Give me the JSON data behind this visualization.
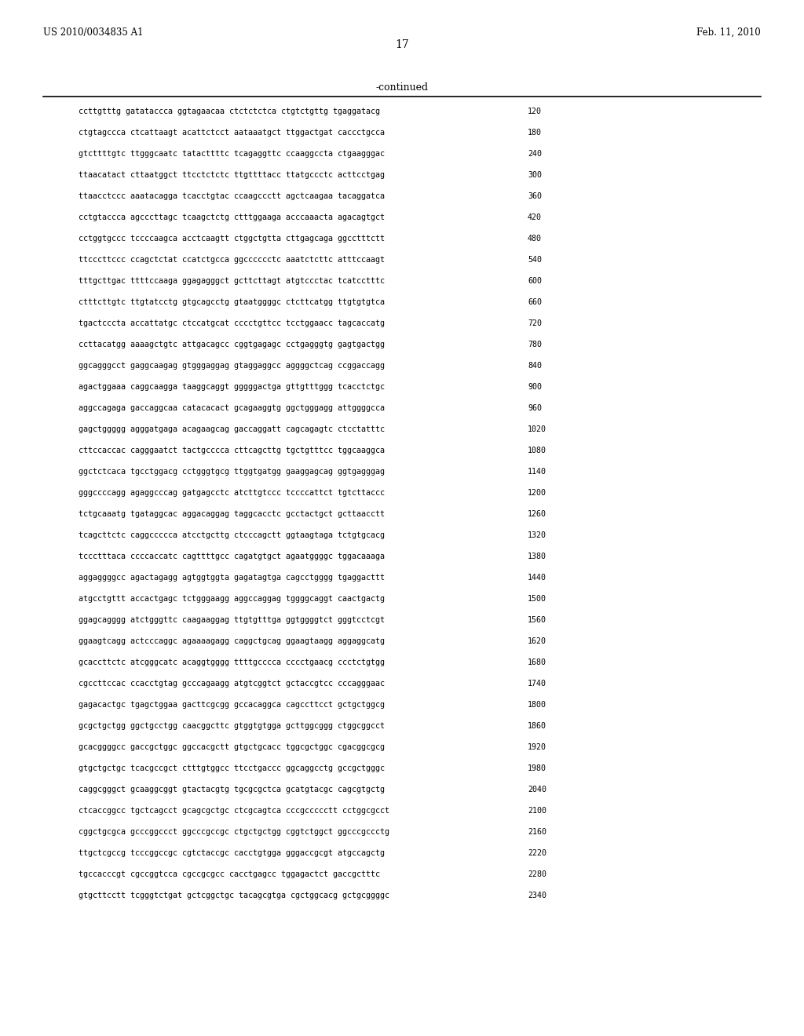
{
  "header_left": "US 2010/0034835 A1",
  "header_right": "Feb. 11, 2010",
  "page_number": "17",
  "continued_label": "-continued",
  "background_color": "#ffffff",
  "text_color": "#000000",
  "sequences": [
    {
      "seq": "ccttgtttg gatataccca ggtagaacaa ctctctctca ctgtctgttg tgaggatacg",
      "num": "120"
    },
    {
      "seq": "ctgtagccca ctcattaagt acattctcct aataaatgct ttggactgat caccctgcca",
      "num": "180"
    },
    {
      "seq": "gtcttttgtc ttgggcaatc tatacttttc tcagaggttc ccaaggccta ctgaagggac",
      "num": "240"
    },
    {
      "seq": "ttaacatact cttaatggct ttcctctctc ttgttttacc ttatgccctc acttcctgag",
      "num": "300"
    },
    {
      "seq": "ttaacctccc aaatacagga tcacctgtac ccaagccctt agctcaagaa tacaggatca",
      "num": "360"
    },
    {
      "seq": "cctgtaccca agcccttagc tcaagctctg ctttggaaga acccaaacta agacagtgct",
      "num": "420"
    },
    {
      "seq": "cctggtgccc tccccaagca acctcaagtt ctggctgtta cttgagcaga ggcctttctt",
      "num": "480"
    },
    {
      "seq": "ttcccttccc ccagctctat ccatctgcca ggcccccctc aaatctcttc atttccaagt",
      "num": "540"
    },
    {
      "seq": "tttgcttgac ttttccaaga ggagagggct gcttcttagt atgtccctac tcatcctttc",
      "num": "600"
    },
    {
      "seq": "ctttcttgtc ttgtatcctg gtgcagcctg gtaatggggc ctcttcatgg ttgtgtgtca",
      "num": "660"
    },
    {
      "seq": "tgactcccta accattatgc ctccatgcat cccctgttcc tcctggaacc tagcaccatg",
      "num": "720"
    },
    {
      "seq": "ccttacatgg aaaagctgtc attgacagcc cggtgagagc cctgagggtg gagtgactgg",
      "num": "780"
    },
    {
      "seq": "ggcagggcct gaggcaagag gtgggaggag gtaggaggcc aggggctcag ccggaccagg",
      "num": "840"
    },
    {
      "seq": "agactggaaa caggcaagga taaggcaggt gggggactga gttgtttggg tcacctctgc",
      "num": "900"
    },
    {
      "seq": "aggccagaga gaccaggcaa catacacact gcagaaggtg ggctgggagg attggggcca",
      "num": "960"
    },
    {
      "seq": "gagctggggg agggatgaga acagaagcag gaccaggatt cagcagagtc ctcctatttc",
      "num": "1020"
    },
    {
      "seq": "cttccaccac cagggaatct tactgcccca cttcagcttg tgctgtttcc tggcaaggca",
      "num": "1080"
    },
    {
      "seq": "ggctctcaca tgcctggacg cctgggtgcg ttggtgatgg gaaggagcag ggtgagggag",
      "num": "1140"
    },
    {
      "seq": "gggccccagg agaggcccag gatgagcctc atcttgtccc tccccattct tgtcttaccc",
      "num": "1200"
    },
    {
      "seq": "tctgcaaatg tgataggcac aggacaggag taggcacctc gcctactgct gcttaacctt",
      "num": "1260"
    },
    {
      "seq": "tcagcttctc caggccccca atcctgcttg ctcccagctt ggtaagtaga tctgtgcacg",
      "num": "1320"
    },
    {
      "seq": "tccctttaca ccccaccatc cagttttgcc cagatgtgct agaatggggc tggacaaaga",
      "num": "1380"
    },
    {
      "seq": "aggaggggcc agactagagg agtggtggta gagatagtga cagcctgggg tgaggacttt",
      "num": "1440"
    },
    {
      "seq": "atgcctgttt accactgagc tctgggaagg aggccaggag tggggcaggt caactgactg",
      "num": "1500"
    },
    {
      "seq": "ggagcagggg atctgggttc caagaaggag ttgtgtttga ggtggggtct gggtcctcgt",
      "num": "1560"
    },
    {
      "seq": "ggaagtcagg actcccaggc agaaaagagg caggctgcag ggaagtaagg aggaggcatg",
      "num": "1620"
    },
    {
      "seq": "gcaccttctc atcgggcatc acaggtgggg ttttgcccca cccctgaacg ccctctgtgg",
      "num": "1680"
    },
    {
      "seq": "cgccttccac ccacctgtag gcccagaagg atgtcggtct gctaccgtcc cccagggaac",
      "num": "1740"
    },
    {
      "seq": "gagacactgc tgagctggaa gacttcgcgg gccacaggca cagccttcct gctgctggcg",
      "num": "1800"
    },
    {
      "seq": "gcgctgctgg ggctgcctgg caacggcttc gtggtgtgga gcttggcggg ctggcggcct",
      "num": "1860"
    },
    {
      "seq": "gcacggggcc gaccgctggc ggccacgctt gtgctgcacc tggcgctggc cgacggcgcg",
      "num": "1920"
    },
    {
      "seq": "gtgctgctgc tcacgccgct ctttgtggcc ttcctgaccc ggcaggcctg gccgctgggc",
      "num": "1980"
    },
    {
      "seq": "caggcgggct gcaaggcggt gtactacgtg tgcgcgctca gcatgtacgc cagcgtgctg",
      "num": "2040"
    },
    {
      "seq": "ctcaccggcc tgctcagcct gcagcgctgc ctcgcagtca cccgccccctt cctggcgcct",
      "num": "2100"
    },
    {
      "seq": "cggctgcgca gcccggccct ggcccgccgc ctgctgctgg cggtctggct ggcccgccctg",
      "num": "2160"
    },
    {
      "seq": "ttgctcgccg tcccggccgc cgtctaccgc cacctgtgga gggaccgcgt atgccagctg",
      "num": "2220"
    },
    {
      "seq": "tgccacccgt cgccggtcca cgccgcgcc cacctgagcc tggagactct gaccgctttc",
      "num": "2280"
    },
    {
      "seq": "gtgcttcctt tcgggtctgat gctcggctgc tacagcgtga cgctggcacg gctgcggggc",
      "num": "2340"
    }
  ]
}
